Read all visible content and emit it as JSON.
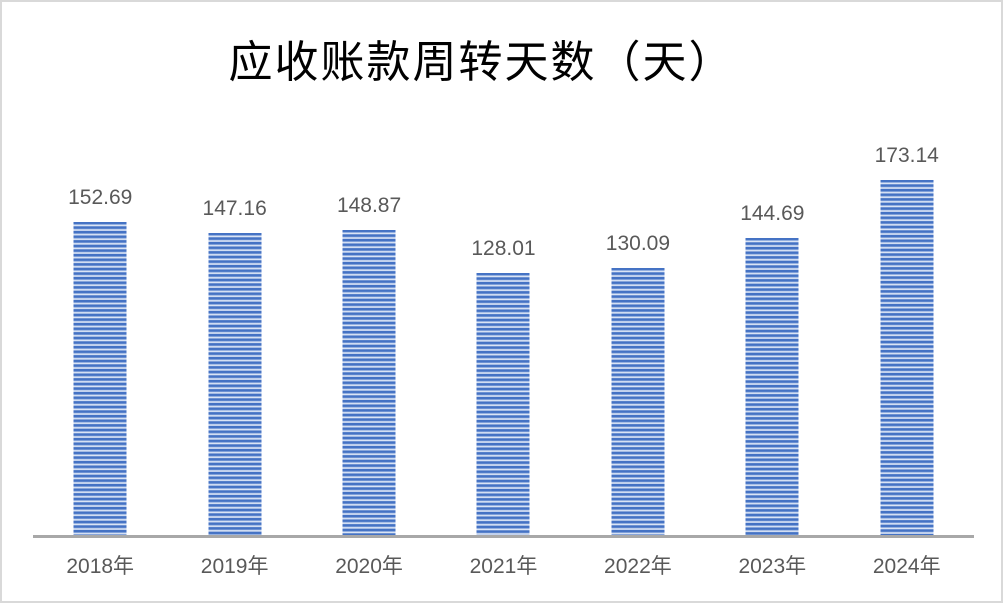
{
  "chart": {
    "title": "应收账款周转天数（天）"
  },
  "chart_data": {
    "type": "bar",
    "title": "应收账款周转天数（天）",
    "categories": [
      "2018年",
      "2019年",
      "2020年",
      "2021年",
      "2022年",
      "2023年",
      "2024年"
    ],
    "values": [
      152.69,
      147.16,
      148.87,
      128.01,
      130.09,
      144.69,
      173.14
    ],
    "data_labels": [
      "152.69",
      "147.16",
      "148.87",
      "128.01",
      "130.09",
      "144.69",
      "173.14"
    ],
    "xlabel": "",
    "ylabel": "",
    "ylim": [
      0,
      260
    ],
    "grid": false,
    "legend": false,
    "bar_fill_style": "horizontal-stripes"
  },
  "colors": {
    "bar_stripe_dark": "#4472c4",
    "bar_stripe_light": "#e9eff9",
    "data_label_text": "#595959",
    "axis_label_text": "#595959",
    "title_text": "#000000",
    "axis_line": "#a8a8a8",
    "frame_border": "#d9d9d9",
    "background": "#ffffff"
  }
}
